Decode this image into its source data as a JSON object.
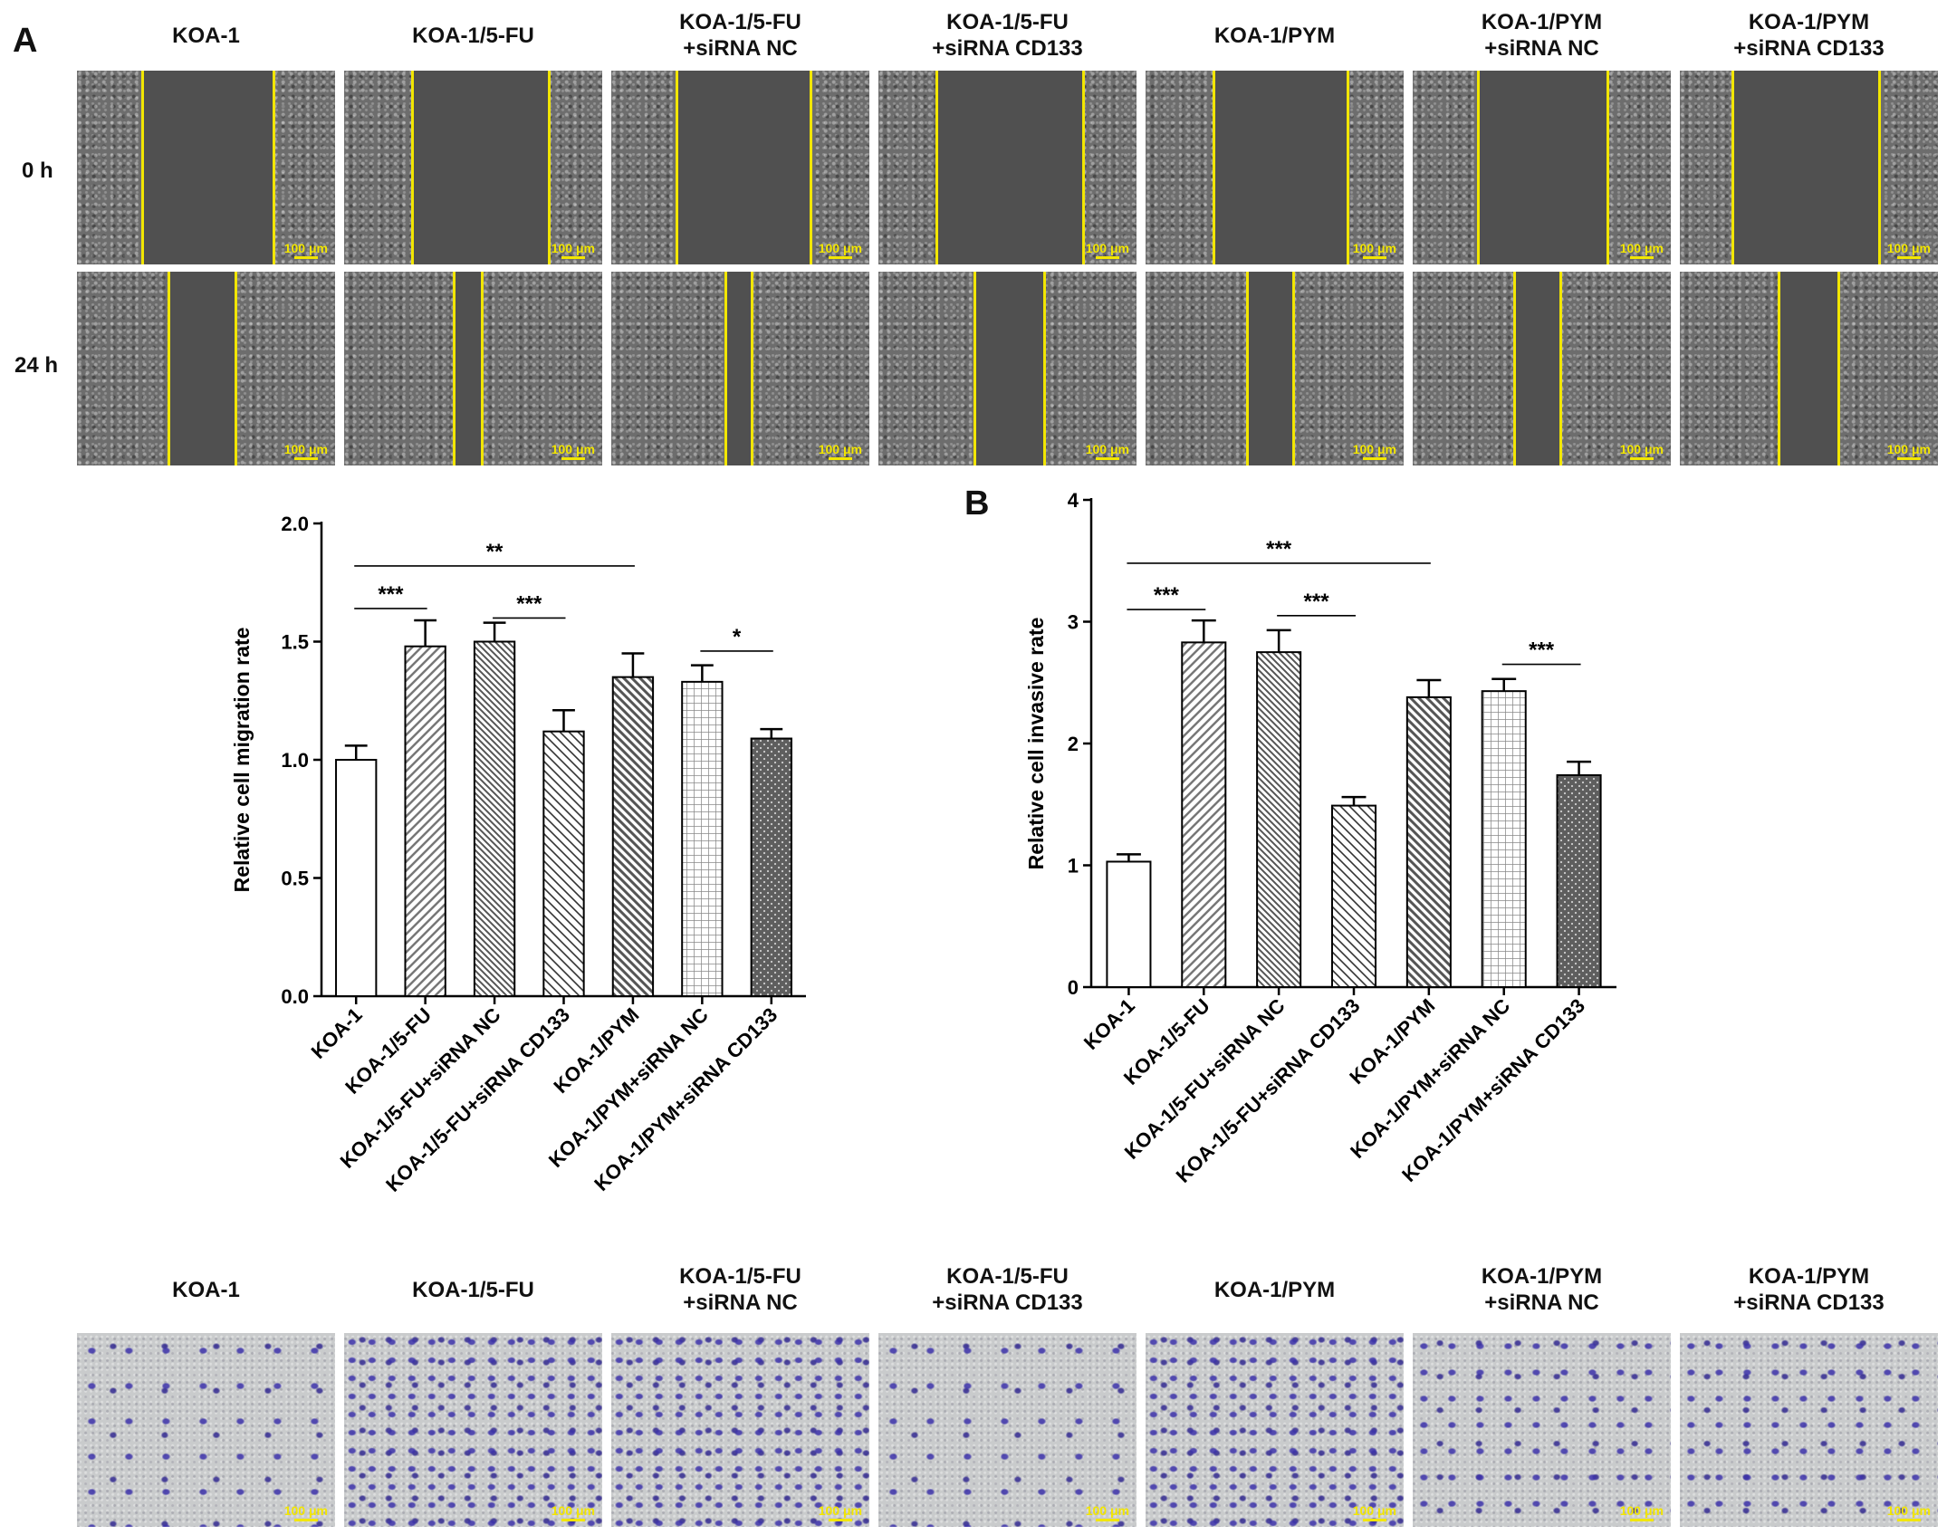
{
  "panel_a_letter": "A",
  "panel_b_letter": "B",
  "groups_two_line": [
    "KOA-1",
    "KOA-1/5-FU",
    "KOA-1/5-FU\n+siRNA NC",
    "KOA-1/5-FU\n+siRNA CD133",
    "KOA-1/PYM",
    "KOA-1/PYM\n+siRNA NC",
    "KOA-1/PYM\n+siRNA CD133"
  ],
  "time_labels": [
    "0 h",
    "24 h"
  ],
  "scale_bar_label": "100 μm",
  "colors": {
    "scratch_line": "#f2e600",
    "crystal_violet": "#3c32aa",
    "bar_stroke": "#000000"
  },
  "chart_data": [
    {
      "type": "bar",
      "ylabel": "Relative cell migration rate",
      "ylim": [
        0,
        2.0
      ],
      "yticks": [
        "0.0",
        "0.5",
        "1.0",
        "1.5",
        "2.0"
      ],
      "categories": [
        "KOA-1",
        "KOA-1/5-FU",
        "KOA-1/5-FU+siRNA NC",
        "KOA-1/5-FU+siRNA CD133",
        "KOA-1/PYM",
        "KOA-1/PYM+siRNA NC",
        "KOA-1/PYM+siRNA CD133"
      ],
      "values": [
        1.0,
        1.48,
        1.5,
        1.12,
        1.35,
        1.33,
        1.09
      ],
      "errors": [
        0.06,
        0.11,
        0.08,
        0.09,
        0.1,
        0.07,
        0.04
      ],
      "patterns": [
        "none",
        "diag-right",
        "diag-left-dense",
        "diag-left",
        "diag-left-dark",
        "grid",
        "dots"
      ],
      "significance": [
        {
          "from": 0,
          "to": 1,
          "label": "***",
          "y": 1.64
        },
        {
          "from": 0,
          "to": 4,
          "label": "**",
          "y": 1.82
        },
        {
          "from": 2,
          "to": 3,
          "label": "***",
          "y": 1.6
        },
        {
          "from": 5,
          "to": 6,
          "label": "*",
          "y": 1.46
        }
      ]
    },
    {
      "type": "bar",
      "ylabel": "Relative cell invasive rate",
      "ylim": [
        0,
        4
      ],
      "yticks": [
        "0",
        "1",
        "2",
        "3",
        "4"
      ],
      "categories": [
        "KOA-1",
        "KOA-1/5-FU",
        "KOA-1/5-FU+siRNA NC",
        "KOA-1/5-FU+siRNA CD133",
        "KOA-1/PYM",
        "KOA-1/PYM+siRNA NC",
        "KOA-1/PYM+siRNA CD133"
      ],
      "values": [
        1.03,
        2.83,
        2.75,
        1.49,
        2.38,
        2.43,
        1.74
      ],
      "errors": [
        0.06,
        0.18,
        0.18,
        0.07,
        0.14,
        0.1,
        0.11
      ],
      "patterns": [
        "none",
        "diag-right",
        "diag-left-dense",
        "diag-left",
        "diag-left-dark",
        "grid",
        "dots"
      ],
      "significance": [
        {
          "from": 0,
          "to": 1,
          "label": "***",
          "y": 3.1
        },
        {
          "from": 0,
          "to": 4,
          "label": "***",
          "y": 3.48
        },
        {
          "from": 2,
          "to": 3,
          "label": "***",
          "y": 3.05
        },
        {
          "from": 5,
          "to": 6,
          "label": "***",
          "y": 2.65
        }
      ]
    }
  ]
}
